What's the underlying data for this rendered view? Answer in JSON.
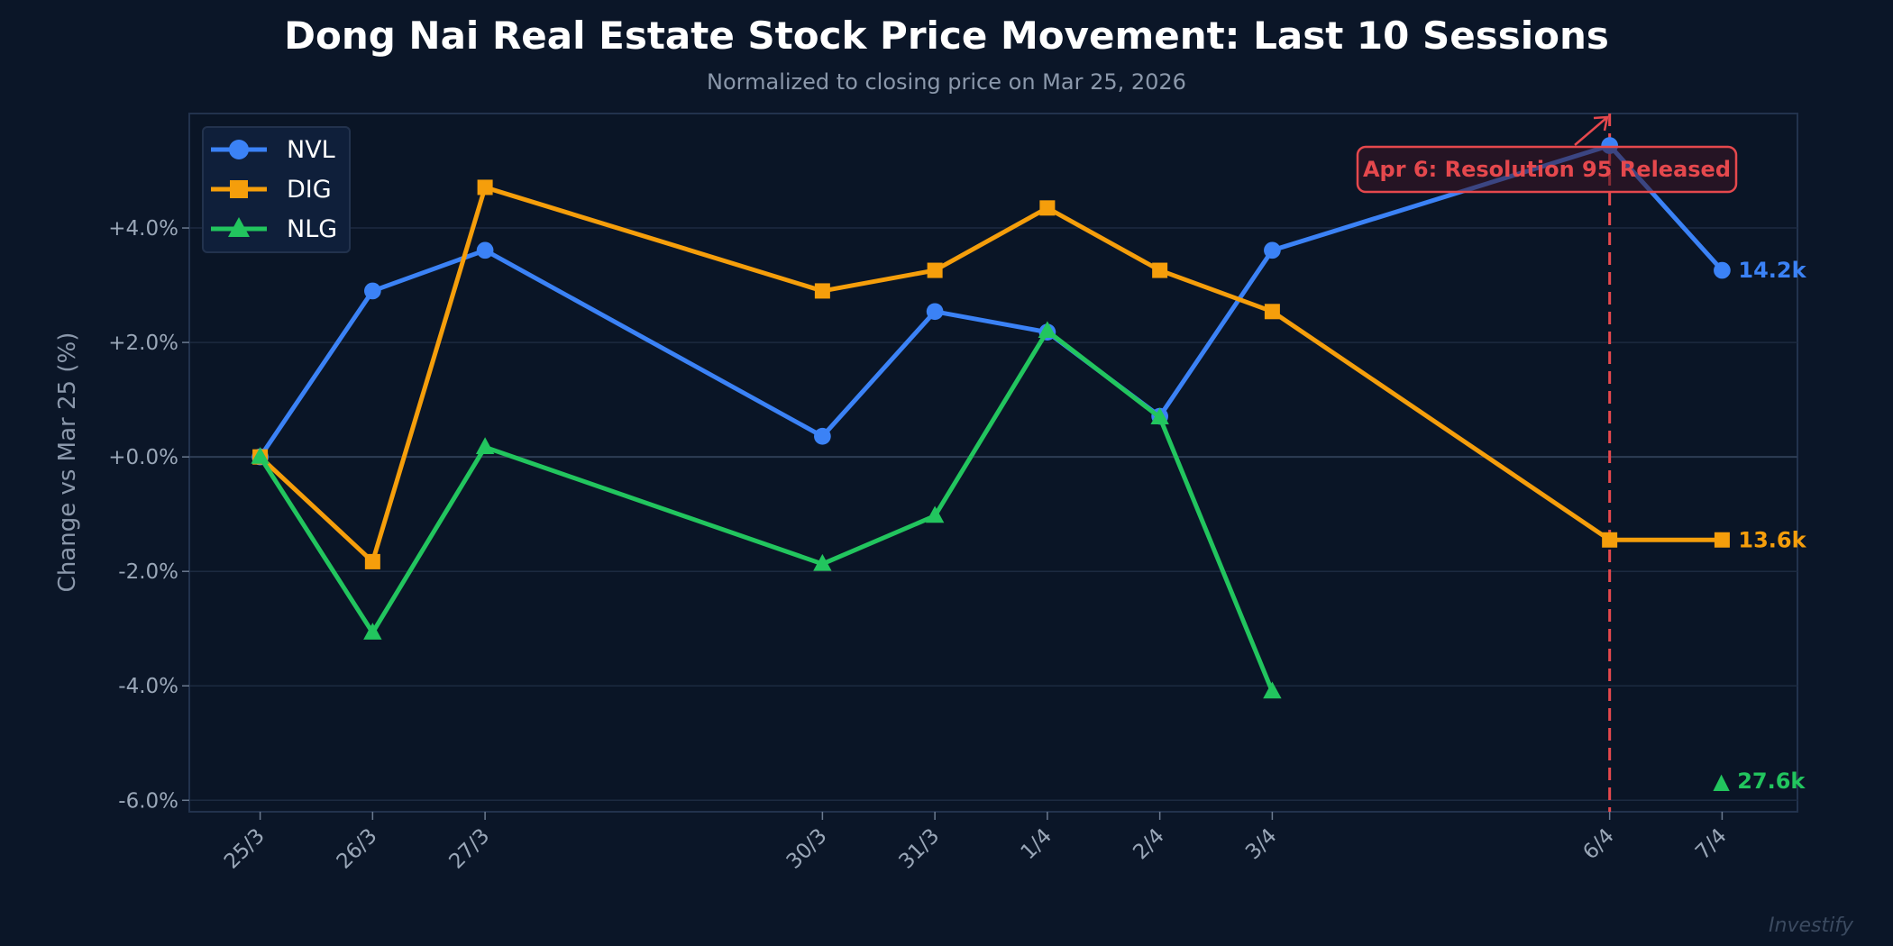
{
  "chart_data": {
    "type": "line",
    "title": "Dong Nai Real Estate Stock Price Movement: Last 10 Sessions",
    "subtitle": "Normalized to closing price on Mar 25, 2026",
    "ylabel": "Change vs Mar 25 (%)",
    "xlabel": "",
    "x": [
      "2026-03-25",
      "2026-03-26",
      "2026-03-27",
      "2026-03-30",
      "2026-03-31",
      "2026-04-01",
      "2026-04-02",
      "2026-04-03",
      "2026-04-06",
      "2026-04-07"
    ],
    "x_tick_labels": [
      "25/3",
      "26/3",
      "27/3",
      "30/3",
      "31/3",
      "1/4",
      "2/4",
      "3/4",
      "6/4",
      "7/4"
    ],
    "y_ticks": [
      4,
      2,
      0,
      -2,
      -4,
      -6
    ],
    "y_tick_labels": [
      "+4.0%",
      "+2.0%",
      "+0.0%",
      "-2.0%",
      "-4.0%",
      "-6.0%"
    ],
    "ylim": [
      -6.2,
      6.0
    ],
    "xlim": [
      "2026-03-24",
      "2026-04-08"
    ],
    "grid": true,
    "legend": "top-left",
    "series": [
      {
        "name": "NVL",
        "color": "#3b82f6",
        "marker": "circle",
        "values": [
          0,
          2.9,
          3.61,
          0.36,
          2.54,
          2.18,
          0.71,
          3.61,
          5.44,
          3.26
        ],
        "end_label": "14.2k"
      },
      {
        "name": "DIG",
        "color": "#f59e0b",
        "marker": "square",
        "values": [
          0,
          -1.83,
          4.71,
          2.9,
          3.26,
          4.35,
          3.26,
          2.54,
          -1.45,
          -1.45
        ],
        "end_label": "13.6k"
      },
      {
        "name": "NLG",
        "color": "#22c55e",
        "marker": "triangle",
        "values": [
          0,
          -3.07,
          0.17,
          -1.87,
          -1.03,
          2.2,
          0.69,
          -4.1,
          null,
          null
        ],
        "end_label": "▲ 27.6k"
      }
    ],
    "annotation": {
      "date": "2026-04-06",
      "text": "Apr 6: Resolution 95 Released",
      "color": "#e5484d"
    }
  },
  "watermark": "Investify",
  "colors": {
    "background": "#0b1628",
    "grid": "#1c2a40",
    "axis_text": "#9aa7b8"
  }
}
